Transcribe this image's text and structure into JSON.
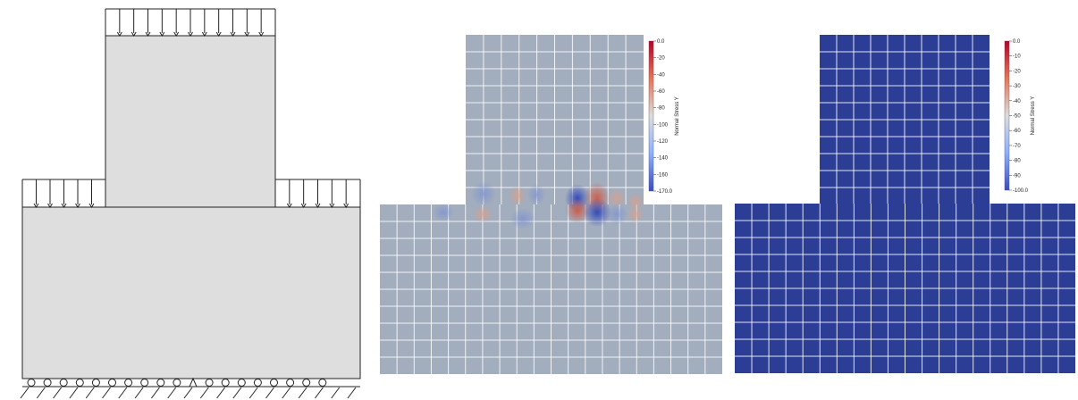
{
  "panels": {
    "schematic": {
      "loads": "distributed-downward",
      "supports": "roller-and-pin"
    },
    "mesh_plot_1": {
      "colorbar": {
        "title": "Normal Stress Y",
        "ticks": [
          "0.0",
          "-20",
          "-40",
          "-60",
          "-80",
          "-100",
          "-120",
          "-140",
          "-160",
          "-170.0"
        ],
        "range": [
          -170,
          0
        ],
        "colors": {
          "high": "#b40426",
          "mid": "#dddddd",
          "low": "#3b4cc0"
        }
      },
      "base_color": "#a2adbe"
    },
    "mesh_plot_2": {
      "colorbar": {
        "title": "Normal Stress Y",
        "ticks": [
          "0.0",
          "-10",
          "-20",
          "-30",
          "-40",
          "-50",
          "-60",
          "-70",
          "-80",
          "-90",
          "-100.0"
        ],
        "range": [
          -100,
          0
        ],
        "colors": {
          "high": "#b40426",
          "mid": "#dddddd",
          "low": "#3b4cc0"
        }
      },
      "base_color": "#2c3d96"
    }
  }
}
